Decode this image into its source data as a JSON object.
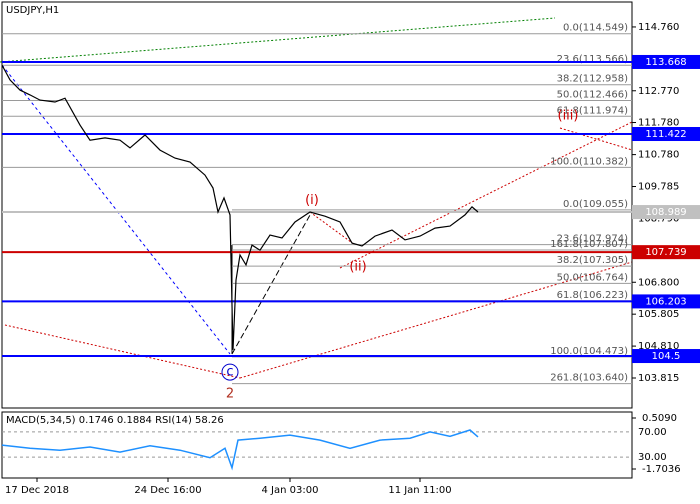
{
  "chart_data": [
    {
      "type": "line",
      "title": "USDJPY,H1",
      "x": [
        0,
        8,
        18,
        28,
        38,
        53,
        63,
        78,
        88,
        103,
        118,
        128,
        143,
        158,
        173,
        188,
        203,
        211,
        216,
        222,
        228,
        231,
        234,
        238,
        244,
        250,
        258,
        268,
        280,
        293,
        308,
        323,
        338,
        350,
        360,
        373,
        390,
        403,
        418,
        433,
        448,
        463,
        470,
        476
      ],
      "values": [
        113.57,
        113.11,
        112.79,
        112.64,
        112.48,
        112.42,
        112.54,
        111.7,
        111.23,
        111.3,
        111.23,
        110.99,
        111.39,
        110.92,
        110.67,
        110.55,
        110.14,
        109.74,
        108.99,
        109.43,
        108.9,
        104.69,
        106.87,
        107.65,
        107.34,
        107.96,
        107.8,
        108.27,
        108.18,
        108.68,
        108.99,
        108.86,
        108.68,
        108.02,
        107.93,
        108.24,
        108.43,
        108.12,
        108.24,
        108.49,
        108.55,
        108.9,
        109.15,
        108.99
      ],
      "color": "#000000",
      "xlim": [
        0,
        630
      ],
      "xticks": [
        {
          "value": 35,
          "label": "17 Dec 2018"
        },
        {
          "value": 166,
          "label": "24 Dec 16:00"
        },
        {
          "value": 288,
          "label": "4 Jan 03:00"
        },
        {
          "value": 418,
          "label": "11 Jan 11:00"
        }
      ],
      "ylim": [
        102.88,
        115.6
      ],
      "yticks": [
        {
          "value": 114.76,
          "label": "114.760"
        },
        {
          "value": 112.77,
          "label": "112.770"
        },
        {
          "value": 111.78,
          "label": "111.780"
        },
        {
          "value": 110.78,
          "label": "110.780"
        },
        109.785,
        {
          "value": 108.79,
          "label": "108.790"
        },
        {
          "value": 106.8,
          "label": "106.800"
        },
        105.805,
        {
          "value": 104.81,
          "label": "104.810"
        },
        103.815
      ],
      "levels": [
        {
          "value": 113.668,
          "color": "#0000ff"
        },
        {
          "value": 111.422,
          "color": "#0000ff"
        },
        {
          "value": 108.989,
          "color": "#c0c0c0"
        },
        {
          "value": 107.739,
          "color": "#cc0000"
        },
        {
          "value": 106.203,
          "color": "#0000ff"
        },
        {
          "value": 104.5,
          "color": "#0000ff"
        }
      ],
      "fibonacci": [
        {
          "start": 0,
          "levels": [
            {
              "value": 114.549,
              "label": "0.0(114.549)"
            },
            {
              "value": 113.566,
              "label": "23.6(113.566)"
            },
            {
              "value": 112.958,
              "label": "38.2(112.958)"
            },
            {
              "value": 112.466,
              "label": "50.0(112.466)"
            },
            {
              "value": 111.974,
              "label": "61.8(111.974)"
            },
            {
              "value": 110.382,
              "label": "100.0(110.382)"
            }
          ]
        },
        {
          "start": 230,
          "levels": [
            {
              "value": 109.055,
              "label": "0.0(109.055)"
            },
            {
              "value": 107.974,
              "label": "23.6(107.974)"
            },
            {
              "value": 107.807,
              "label": "161.8(107.807)"
            },
            {
              "value": 107.305,
              "label": "38.2(107.305)"
            },
            {
              "value": 106.764,
              "label": "50.0(106.764)"
            },
            {
              "value": 106.223,
              "label": "61.8(106.223)"
            },
            {
              "value": 104.473,
              "label": "100.0(104.473)"
            },
            {
              "value": 103.64,
              "label": "261.8(103.640)"
            }
          ]
        }
      ],
      "annotations": [
        {
          "label": "(i)",
          "x": 310,
          "y": 109.35,
          "color": "#cc0000"
        },
        {
          "label": "(ii)",
          "x": 356,
          "y": 107.27,
          "color": "#cc0000"
        },
        {
          "label": "(iii)",
          "x": 566,
          "y": 111.98,
          "color": "#cc0000"
        },
        {
          "label": "c",
          "x": 228,
          "y": 104.0,
          "color": "#0000cc"
        },
        {
          "label": "2",
          "x": 228,
          "y": 103.31,
          "color": "#b03020"
        }
      ]
    },
    {
      "type": "line",
      "title": "MACD(5,34,5) 0.1746 0.1884 RSI(14) 58.26",
      "x": [
        0,
        28,
        58,
        88,
        118,
        148,
        178,
        208,
        223,
        230,
        236,
        258,
        288,
        318,
        348,
        378,
        408,
        428,
        448,
        468,
        476
      ],
      "values": [
        49,
        44,
        41,
        46,
        38,
        48,
        41,
        29,
        44,
        13,
        57,
        60,
        65,
        57,
        44,
        57,
        60,
        70,
        63,
        73,
        62
      ],
      "color": "#1e90ff",
      "ylim": [
        0,
        100
      ],
      "yticks": [
        {
          "value": 70,
          "label": "70.00"
        },
        {
          "value": 30,
          "label": "30.00"
        }
      ],
      "y2lim": [
        -2.094,
        0.726
      ],
      "y2ticks": [
        {
          "value": 0.509,
          "label": "0.5090"
        },
        -1.7036
      ]
    }
  ]
}
